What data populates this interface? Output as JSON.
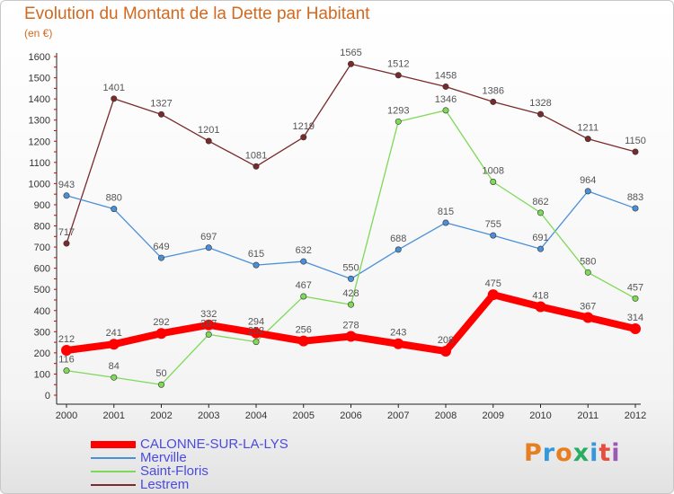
{
  "title": "Evolution du Montant de la Dette par Habitant",
  "subtitle": "(en €)",
  "brand": {
    "name": "Proxiti",
    "colors": [
      "#e67e22",
      "#3498db",
      "#e67e22",
      "#27ae60",
      "#3498db",
      "#e74c3c",
      "#9b59b6"
    ]
  },
  "chart_data": {
    "type": "line",
    "x": [
      "2000",
      "2001",
      "2002",
      "2003",
      "2004",
      "2005",
      "2006",
      "2007",
      "2008",
      "2009",
      "2010",
      "2011",
      "2012"
    ],
    "ylim": [
      0,
      1600
    ],
    "yticks": [
      0,
      100,
      200,
      300,
      400,
      500,
      600,
      700,
      800,
      900,
      1000,
      1100,
      1200,
      1300,
      1400,
      1500,
      1600
    ],
    "grid": false,
    "legend_position": "bottom-left",
    "series": [
      {
        "name": "CALONNE-SUR-LA-LYS",
        "color": "#ff0000",
        "values": [
          212,
          241,
          292,
          332,
          294,
          256,
          278,
          243,
          208,
          475,
          418,
          367,
          314
        ]
      },
      {
        "name": "Merville",
        "color": "#4a90d9",
        "values": [
          943,
          880,
          649,
          697,
          615,
          632,
          550,
          688,
          815,
          755,
          691,
          964,
          883
        ]
      },
      {
        "name": "Saint-Floris",
        "color": "#7ed957",
        "values": [
          116,
          84,
          50,
          287,
          252,
          467,
          428,
          1293,
          1346,
          1008,
          862,
          580,
          457
        ]
      },
      {
        "name": "Lestrem",
        "color": "#7a2a2a",
        "values": [
          717,
          1401,
          1327,
          1201,
          1081,
          1219,
          1565,
          1512,
          1458,
          1386,
          1328,
          1211,
          1150
        ]
      }
    ]
  }
}
